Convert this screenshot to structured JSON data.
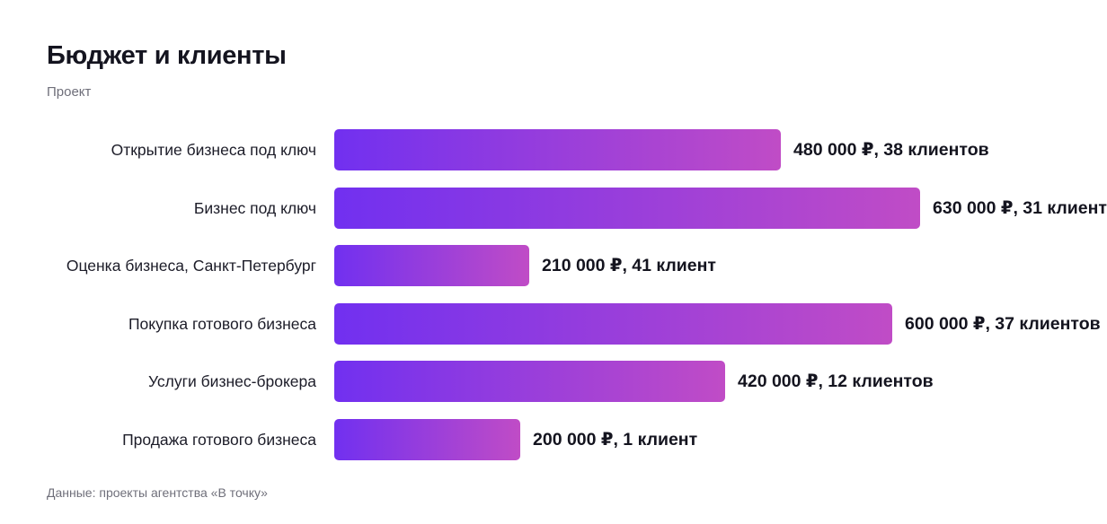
{
  "title": "Бюджет и клиенты",
  "subtitle": "Проект",
  "footer": "Данные: проекты агентства «В точку»",
  "colors": {
    "bar_start": "#7130f0",
    "bar_end": "#c04cc6",
    "text": "#14141f",
    "muted": "#6f6f7a"
  },
  "chart_data": {
    "type": "bar",
    "orientation": "horizontal",
    "categories": [
      "Открытие бизнеса под ключ",
      "Бизнес под ключ",
      "Оценка бизнеса, Санкт-Петербург",
      "Покупка готового бизнеса",
      "Услуги бизнес-брокера",
      "Продажа готового бизнеса"
    ],
    "series": [
      {
        "values": [
          480000,
          630000,
          210000,
          600000,
          420000,
          200000
        ]
      }
    ],
    "data_labels": [
      "480 000 ₽, 38 клиентов",
      "630 000 ₽, 31 клиент",
      "210 000 ₽, 41 клиент",
      "600 000 ₽, 37 клиентов",
      "420 000 ₽, 12 клиентов",
      "200 000 ₽, 1 клиент"
    ],
    "clients": [
      38,
      31,
      41,
      37,
      12,
      1
    ],
    "xlim": [
      0,
      630000
    ],
    "grid": false,
    "legend": "none"
  }
}
